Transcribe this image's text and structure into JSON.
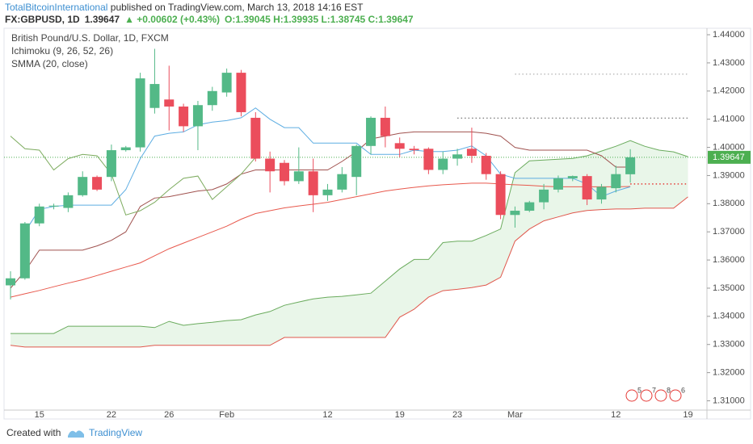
{
  "header": {
    "author": "TotalBitcoinInternational",
    "published": "published on TradingView.com, March 13, 2018 14:16 EST",
    "symbol": "FX:GBPUSD, 1D",
    "last": "1.39647",
    "change": "▲ +0.00602 (+0.43%)",
    "ohlc": "O:1.39045 H:1.39935 L:1.38745 C:1.39647"
  },
  "footer": {
    "created": "Created with",
    "brand": "TradingView"
  },
  "chart_data": {
    "type": "candlestick",
    "legend": [
      "British Pound/U.S. Dollar, 1D, FXCM",
      "Ichimoku (9, 26, 52, 26)",
      "SMMA (20, close)"
    ],
    "categories": [
      null,
      null,
      "15",
      null,
      null,
      null,
      null,
      "22",
      null,
      null,
      null,
      "26",
      null,
      null,
      null,
      "Feb",
      null,
      null,
      null,
      null,
      null,
      null,
      "12",
      null,
      null,
      null,
      null,
      "19",
      null,
      null,
      null,
      "23",
      null,
      null,
      null,
      "Mar",
      null,
      null,
      null,
      null,
      null,
      null,
      "12",
      null,
      null,
      null,
      null,
      "19"
    ],
    "open": [
      1.351,
      1.3535,
      1.373,
      1.379,
      1.3785,
      1.383,
      1.3895,
      1.3895,
      1.399,
      1.4,
      1.414,
      1.417,
      1.4145,
      1.4075,
      1.415,
      1.4195,
      1.4265,
      1.4105,
      1.396,
      1.3945,
      1.388,
      1.3915,
      1.383,
      1.385,
      1.3895,
      1.4005,
      1.4105,
      1.4015,
      1.3995,
      1.3995,
      1.392,
      1.396,
      1.3995,
      1.397,
      1.3905,
      1.376,
      1.3775,
      1.3805,
      1.385,
      1.389,
      1.3898,
      1.3815,
      1.3855,
      1.39045,
      null,
      null,
      null,
      null
    ],
    "high": [
      1.356,
      1.3735,
      1.38,
      1.38,
      1.384,
      1.3915,
      1.39,
      1.401,
      1.4005,
      1.4265,
      1.435,
      1.429,
      1.4155,
      1.4165,
      1.4215,
      1.428,
      1.4275,
      1.4125,
      1.3985,
      1.3955,
      1.4,
      1.396,
      1.387,
      1.393,
      1.401,
      1.411,
      1.4145,
      1.4035,
      1.4005,
      1.4,
      1.3985,
      1.3995,
      1.407,
      1.398,
      1.3915,
      1.379,
      1.381,
      1.387,
      1.39,
      1.39,
      1.3905,
      1.387,
      1.3935,
      1.39935,
      null,
      null,
      null,
      null
    ],
    "low": [
      1.346,
      1.353,
      1.372,
      1.378,
      1.377,
      1.3825,
      1.3845,
      1.388,
      1.3985,
      1.3985,
      1.412,
      1.406,
      1.4055,
      1.399,
      1.413,
      1.418,
      1.411,
      1.395,
      1.384,
      1.3865,
      1.387,
      1.377,
      1.381,
      1.384,
      1.383,
      1.3975,
      1.4,
      1.3965,
      1.3975,
      1.3905,
      1.3905,
      1.3935,
      1.3945,
      1.3885,
      1.3745,
      1.3715,
      1.377,
      1.378,
      1.384,
      1.388,
      1.3795,
      1.38,
      1.384,
      1.38745,
      null,
      null,
      null,
      null
    ],
    "close": [
      1.3535,
      1.373,
      1.379,
      1.3793,
      1.383,
      1.3895,
      1.385,
      1.399,
      1.4,
      1.4245,
      1.4225,
      1.4145,
      1.4075,
      1.415,
      1.42,
      1.4265,
      1.4125,
      1.396,
      1.3915,
      1.388,
      1.3915,
      1.383,
      1.385,
      1.3905,
      1.4005,
      1.4105,
      1.404,
      1.3995,
      1.399,
      1.392,
      1.396,
      1.3975,
      1.397,
      1.3905,
      1.376,
      1.3775,
      1.3805,
      1.385,
      1.389,
      1.3898,
      1.3815,
      1.386,
      1.3905,
      1.39647,
      null,
      null,
      null,
      null
    ],
    "up_color": "#53b987",
    "down_color": "#eb4d5c",
    "cloud": {
      "fill": "rgba(120,200,120,0.16)",
      "upper_color": "#6aab5d",
      "lower_color": "#e0574c",
      "upper": [
        1.3339,
        1.3339,
        1.3339,
        1.3339,
        1.3365,
        1.3365,
        1.3365,
        1.3365,
        1.3365,
        1.3365,
        1.336,
        1.3382,
        1.3368,
        1.3374,
        1.3379,
        1.3385,
        1.3388,
        1.3405,
        1.3417,
        1.3439,
        1.3451,
        1.3462,
        1.3468,
        1.3471,
        1.3476,
        1.3482,
        1.3525,
        1.3568,
        1.3602,
        1.3602,
        1.3662,
        1.3667,
        1.3667,
        1.3687,
        1.371,
        1.391,
        1.3952,
        1.3955,
        1.3958,
        1.3961,
        1.397,
        1.3987,
        1.4004,
        1.4024,
        1.4004,
        1.399,
        1.3984,
        1.3967
      ],
      "lower": [
        1.3297,
        1.3291,
        1.3291,
        1.3291,
        1.3291,
        1.3291,
        1.3291,
        1.3291,
        1.3291,
        1.3291,
        1.3297,
        1.3297,
        1.3297,
        1.3297,
        1.3297,
        1.3297,
        1.3297,
        1.3297,
        1.3297,
        1.3325,
        1.3325,
        1.3325,
        1.3325,
        1.3325,
        1.3325,
        1.3325,
        1.3325,
        1.3397,
        1.3425,
        1.3468,
        1.3491,
        1.3496,
        1.3502,
        1.3511,
        1.3539,
        1.3667,
        1.371,
        1.3739,
        1.3753,
        1.3767,
        1.3776,
        1.3779,
        1.3781,
        1.3781,
        1.3784,
        1.3784,
        1.3784,
        1.3824
      ]
    },
    "lines": [
      {
        "color": "#e8594d",
        "values": [
          1.3468,
          1.348,
          1.3492,
          1.3505,
          1.3518,
          1.353,
          1.3545,
          1.356,
          1.3575,
          1.359,
          1.3615,
          1.364,
          1.366,
          1.368,
          1.37,
          1.372,
          1.3745,
          1.3765,
          1.3775,
          1.3785,
          1.3792,
          1.3798,
          1.3805,
          1.3815,
          1.3825,
          1.3835,
          1.3845,
          1.3852,
          1.3858,
          1.3863,
          1.3867,
          1.387,
          1.3873,
          1.3873,
          1.387,
          1.3867,
          1.3865,
          1.3862,
          1.386,
          1.386,
          1.386,
          1.386,
          1.386,
          1.3861,
          null,
          null,
          null,
          null
        ]
      },
      {
        "color": "#a0524f",
        "values": [
          1.35,
          1.356,
          1.3635,
          1.3635,
          1.3635,
          1.3635,
          1.365,
          1.367,
          1.37,
          1.379,
          1.382,
          1.3825,
          1.3835,
          1.3845,
          1.385,
          1.387,
          1.3905,
          1.392,
          1.392,
          1.392,
          1.392,
          1.392,
          1.392,
          1.395,
          1.3985,
          1.403,
          1.404,
          1.405,
          1.4055,
          1.4055,
          1.4055,
          1.4055,
          1.4055,
          1.405,
          1.404,
          1.4,
          1.399,
          1.399,
          1.399,
          1.399,
          1.399,
          1.397,
          1.393,
          1.393,
          null,
          null,
          null,
          null
        ]
      },
      {
        "color": "#5dade2",
        "values": [
          null,
          1.37,
          1.378,
          1.379,
          1.3795,
          1.3795,
          1.3795,
          1.3795,
          1.385,
          1.396,
          1.404,
          1.405,
          1.4055,
          1.408,
          1.409,
          1.4095,
          1.4105,
          1.414,
          1.41,
          1.407,
          1.407,
          1.4015,
          1.4015,
          1.4015,
          1.4015,
          1.3975,
          1.3975,
          1.3975,
          1.399,
          1.3985,
          1.3985,
          1.399,
          1.4005,
          1.397,
          1.3905,
          1.389,
          1.389,
          1.389,
          1.389,
          1.389,
          1.387,
          1.3825,
          1.3845,
          1.386,
          null,
          null,
          null,
          null
        ]
      },
      {
        "color": "#7cab5e",
        "values": [
          1.404,
          1.3995,
          1.399,
          1.392,
          1.396,
          1.3975,
          1.397,
          1.3905,
          1.376,
          1.3775,
          1.3805,
          1.385,
          1.389,
          1.3898,
          1.3815,
          1.386,
          1.3905,
          1.39647,
          null,
          null,
          null,
          null,
          null,
          null,
          null,
          null,
          null,
          null,
          null,
          null,
          null,
          null,
          null,
          null,
          null,
          null,
          null,
          null,
          null,
          null,
          null,
          null,
          null,
          null,
          null,
          null,
          null,
          null
        ]
      }
    ],
    "levels": [
      {
        "value": 1.426,
        "color": "#9e9e9e"
      },
      {
        "value": 1.4104,
        "color": "#555555"
      },
      {
        "value": 1.387,
        "color": "#e53935"
      }
    ],
    "last_price": {
      "value": 1.39647,
      "label": "1.39647",
      "color": "#4caf50"
    },
    "events": [
      "5",
      "7",
      "8",
      "6"
    ],
    "ylim": [
      1.3067,
      1.4423
    ],
    "yticks": [
      {
        "value": 1.44,
        "label": "1.44000"
      },
      {
        "value": 1.43,
        "label": "1.43000"
      },
      {
        "value": 1.42,
        "label": "1.42000"
      },
      {
        "value": 1.41,
        "label": "1.41000"
      },
      {
        "value": 1.4,
        "label": "1.40000"
      },
      {
        "value": 1.39,
        "label": "1.39000"
      },
      {
        "value": 1.38,
        "label": "1.38000"
      },
      {
        "value": 1.37,
        "label": "1.37000"
      },
      {
        "value": 1.36,
        "label": "1.36000"
      },
      {
        "value": 1.35,
        "label": "1.35000"
      },
      {
        "value": 1.34,
        "label": "1.34000"
      },
      {
        "value": 1.33,
        "label": "1.33000"
      },
      {
        "value": 1.32,
        "label": "1.32000"
      },
      {
        "value": 1.31,
        "label": "1.31000"
      }
    ]
  }
}
